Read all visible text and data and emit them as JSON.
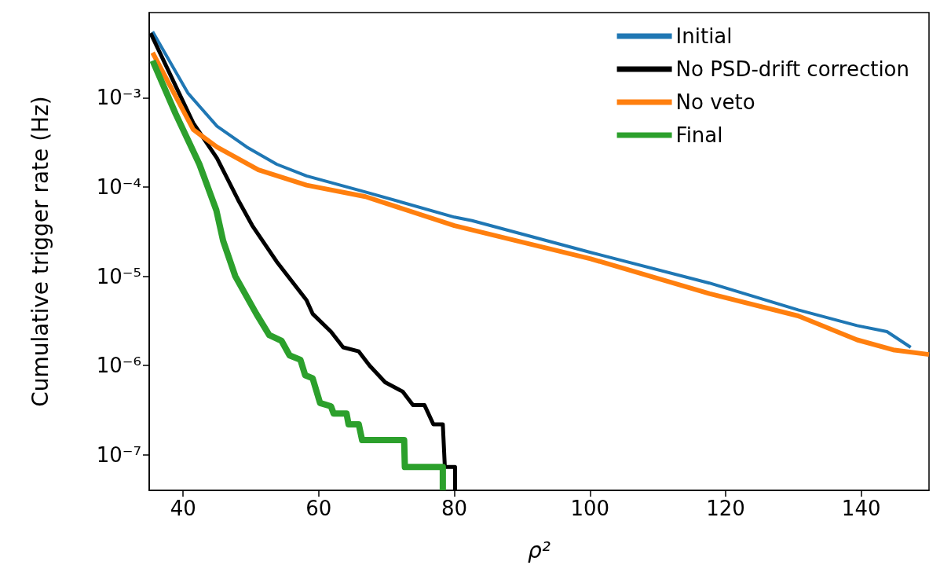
{
  "chart_data": {
    "type": "line",
    "xlabel": "ρ²",
    "ylabel": "Cumulative trigger rate (Hz)",
    "log": "y",
    "grid": false,
    "legend": "top right",
    "line_style": "solid",
    "marker": "none",
    "xlim": [
      35,
      150
    ],
    "xticks": [
      40,
      60,
      80,
      100,
      120,
      140
    ],
    "ylim": [
      4e-08,
      0.009
    ],
    "yticks": [
      {
        "value": 1e-07,
        "label": "10⁻⁷"
      },
      {
        "value": 1e-06,
        "label": "10⁻⁶"
      },
      {
        "value": 1e-05,
        "label": "10⁻⁵"
      },
      {
        "value": 0.0001,
        "label": "10⁻⁴"
      },
      {
        "value": 0.001,
        "label": "10⁻³"
      }
    ],
    "series": [
      {
        "name": "Initial",
        "color": "#1f77b4",
        "x": [
          35.5,
          40.7,
          45.0,
          49.4,
          53.8,
          58.2,
          66.9,
          80.0,
          82.6,
          100.1,
          117.6,
          130.7,
          139.4,
          143.8,
          147.3
        ],
        "values": [
          0.0055,
          0.00113,
          0.00048,
          0.00028,
          0.00018,
          0.000133,
          8.8e-05,
          4.6e-05,
          4.2e-05,
          1.85e-05,
          8.4e-06,
          4.2e-06,
          2.8e-06,
          2.4e-06,
          1.6e-06
        ]
      },
      {
        "name": "No PSD-drift correction",
        "color": "#000000",
        "x": [
          35.2,
          41.5,
          45.0,
          48.1,
          50.2,
          53.8,
          58.2,
          59.1,
          61.8,
          63.6,
          65.9,
          67.5,
          69.8,
          72.4,
          73.9,
          75.6,
          76.9,
          78.3,
          78.6,
          80.1,
          80.1
        ],
        "values": [
          0.0053,
          0.00052,
          0.00021,
          7.2e-05,
          3.7e-05,
          1.46e-05,
          5.4e-06,
          3.8e-06,
          2.4e-06,
          1.6e-06,
          1.44e-06,
          1e-06,
          6.5e-07,
          5.1e-07,
          3.6e-07,
          3.6e-07,
          2.2e-07,
          2.2e-07,
          7.3e-08,
          7.3e-08,
          4e-08
        ]
      },
      {
        "name": "No veto",
        "color": "#ff7f0e",
        "x": [
          35.5,
          41.5,
          45.0,
          51.1,
          58.2,
          66.9,
          80.0,
          100.1,
          117.6,
          130.7,
          139.4,
          144.7,
          150
        ],
        "values": [
          0.0032,
          0.00044,
          0.00028,
          0.000156,
          0.000105,
          7.8e-05,
          3.7e-05,
          1.57e-05,
          6.4e-06,
          3.6e-06,
          1.94e-06,
          1.5e-06,
          1.33e-06
        ]
      },
      {
        "name": "Final",
        "color": "#2ca02c",
        "x": [
          35.5,
          38.9,
          42.4,
          44.9,
          45.9,
          47.7,
          50.8,
          52.7,
          54.5,
          55.7,
          57.3,
          58.0,
          59.1,
          60.2,
          61.8,
          62.2,
          64.1,
          64.4,
          65.9,
          66.4,
          72.6,
          72.7,
          78.3,
          78.3
        ],
        "values": [
          0.0026,
          0.00066,
          0.00018,
          5.5e-05,
          2.5e-05,
          1e-05,
          3.8e-06,
          2.2e-06,
          1.9e-06,
          1.3e-06,
          1.16e-06,
          7.8e-07,
          7.2e-07,
          3.8e-07,
          3.5e-07,
          2.9e-07,
          2.9e-07,
          2.2e-07,
          2.2e-07,
          1.46e-07,
          1.46e-07,
          7.3e-08,
          7.3e-08,
          4e-08
        ]
      }
    ]
  }
}
